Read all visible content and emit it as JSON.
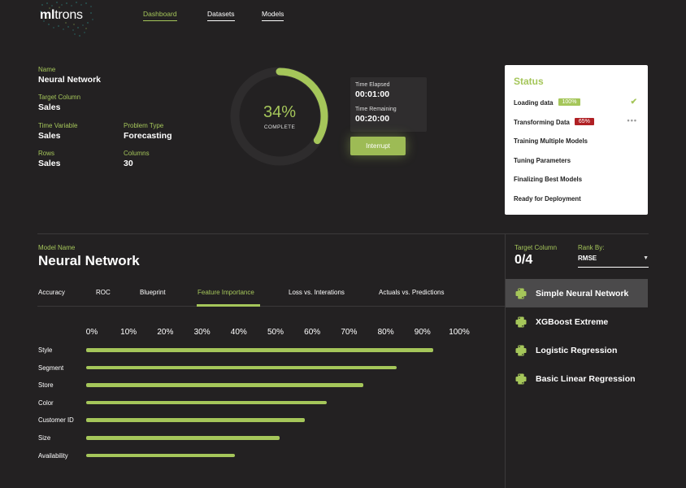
{
  "brand": {
    "name_bold": "ml",
    "name_rest": "trons"
  },
  "nav": [
    {
      "label": "Dashboard",
      "active": true
    },
    {
      "label": "Datasets",
      "active": false
    },
    {
      "label": "Models",
      "active": false
    }
  ],
  "info": {
    "name": {
      "label": "Name",
      "value": "Neural Network"
    },
    "target_column": {
      "label": "Target Column",
      "value": "Sales"
    },
    "time_variable": {
      "label": "Time Variable",
      "value": "Sales"
    },
    "problem_type": {
      "label": "Problem Type",
      "value": "Forecasting"
    },
    "rows": {
      "label": "Rows",
      "value": "Sales"
    },
    "columns": {
      "label": "Columns",
      "value": "30"
    }
  },
  "progress": {
    "percent_text": "34%",
    "percent": 34,
    "label": "COMPLETE"
  },
  "timer": {
    "elapsed_label": "Time Elapsed",
    "elapsed": "00:01:00",
    "remaining_label": "Time Remaining",
    "remaining": "00:20:00"
  },
  "interrupt_label": "Interrupt",
  "status": {
    "title": "Status",
    "steps": [
      {
        "label": "Loading data",
        "badge": "100%",
        "badge_color": "#a5c65a",
        "state": "done"
      },
      {
        "label": "Transforming Data",
        "badge": "65%",
        "badge_color": "#b02024",
        "state": "running"
      },
      {
        "label": "Training Multiple Models"
      },
      {
        "label": "Tuning Parameters"
      },
      {
        "label": "Finalizing Best Models"
      },
      {
        "label": "Ready for Deployment"
      }
    ]
  },
  "model": {
    "label": "Model Name",
    "name": "Neural Network"
  },
  "tabs": [
    {
      "label": "Accuracy"
    },
    {
      "label": "ROC"
    },
    {
      "label": "Blueprint"
    },
    {
      "label": "Feature Importance",
      "active": true
    },
    {
      "label": "Loss vs. Interations"
    },
    {
      "label": "Actuals vs. Predictions"
    }
  ],
  "chart_data": {
    "type": "bar",
    "orientation": "horizontal",
    "xticks": [
      "0%",
      "10%",
      "20%",
      "30%",
      "40%",
      "50%",
      "60%",
      "70%",
      "80%",
      "90%",
      "100%"
    ],
    "xlim": [
      0,
      100
    ],
    "categories": [
      "Style",
      "Segment",
      "Store",
      "Color",
      "Customer ID",
      "Size",
      "Availability"
    ],
    "values": [
      93,
      83,
      74,
      64,
      58,
      51,
      39
    ],
    "color": "#a5c65a"
  },
  "right_panel": {
    "target_label": "Target Column",
    "target_value": "0/4",
    "rank_label": "Rank By:",
    "rank_value": "RMSE",
    "models": [
      {
        "name": "Simple Neural Network",
        "selected": true,
        "icon": "python-icon"
      },
      {
        "name": "XGBoost Extreme",
        "icon": "python-icon"
      },
      {
        "name": "Logistic Regression",
        "icon": "python-icon"
      },
      {
        "name": "Basic Linear Regression",
        "icon": "python-icon"
      }
    ]
  },
  "colors": {
    "accent": "#a5c65a",
    "background": "#232122",
    "alert": "#b02024"
  }
}
